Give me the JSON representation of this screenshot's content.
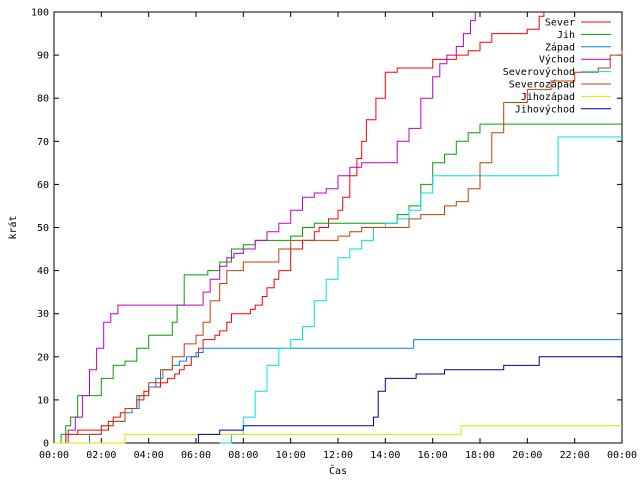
{
  "chart_data": {
    "type": "line",
    "title": "",
    "xlabel": "Čas",
    "ylabel": "krát",
    "xlim": [
      0,
      24
    ],
    "ylim": [
      0,
      100
    ],
    "x_tick_labels": [
      "00:00",
      "02:00",
      "04:00",
      "06:00",
      "08:00",
      "10:00",
      "12:00",
      "14:00",
      "16:00",
      "18:00",
      "20:00",
      "22:00",
      "00:00"
    ],
    "y_tick_labels": [
      "0",
      "10",
      "20",
      "30",
      "40",
      "50",
      "60",
      "70",
      "80",
      "90",
      "100"
    ],
    "grid": false,
    "legend_position": "top-right",
    "series": [
      {
        "name": "Sever",
        "color": "#ff0000",
        "x": [
          0.4,
          0.5,
          1.0,
          1.5,
          2.3,
          2.5,
          2.8,
          3.0,
          3.5,
          3.8,
          4.0,
          4.5,
          4.8,
          5.1,
          5.3,
          5.5,
          5.8,
          6.1,
          6.3,
          6.8,
          7.0,
          7.3,
          7.5,
          8.0,
          8.3,
          8.5,
          8.8,
          9.0,
          9.3,
          9.5,
          10.0,
          10.5,
          11.0,
          11.2,
          11.6,
          12.0,
          12.2,
          12.5,
          12.8,
          13.0,
          13.2,
          13.6,
          14.0,
          14.5,
          15.0,
          15.5,
          16.0,
          16.5,
          17.0,
          17.5,
          18.0,
          18.5,
          19.0,
          20.0,
          20.5,
          20.7
        ],
        "y": [
          0,
          2,
          3,
          3,
          5,
          6,
          7,
          8,
          10,
          12,
          13,
          14,
          15,
          16,
          17,
          18,
          20,
          22,
          24,
          25,
          26,
          28,
          30,
          30,
          31,
          32,
          34,
          36,
          38,
          40,
          45,
          47,
          49,
          50,
          52,
          54,
          57,
          62,
          66,
          70,
          75,
          80,
          86,
          87,
          87,
          87,
          89,
          89,
          90,
          91,
          93,
          95,
          95,
          96,
          99,
          100
        ]
      },
      {
        "name": "Jih",
        "color": "#00a000",
        "x": [
          0.1,
          0.3,
          0.5,
          0.7,
          1.0,
          1.5,
          2.0,
          2.5,
          3.0,
          3.5,
          4.0,
          4.5,
          5.0,
          5.2,
          5.5,
          6.0,
          6.5,
          7.0,
          7.5,
          8.0,
          8.5,
          9.0,
          9.5,
          10.0,
          10.5,
          11.0,
          12.0,
          13.0,
          14.0,
          14.5,
          15.0,
          15.5,
          16.0,
          16.5,
          17.0,
          17.5,
          18.0,
          18.5,
          19.0,
          20.0,
          22.0,
          24.0
        ],
        "y": [
          0,
          2,
          4,
          6,
          11,
          11,
          15,
          18,
          19,
          22,
          25,
          25,
          28,
          32,
          39,
          39,
          40,
          42,
          45,
          46,
          47,
          47,
          47,
          48,
          50,
          51,
          51,
          51,
          51,
          53,
          55,
          60,
          65,
          67,
          70,
          72,
          74,
          74,
          74,
          74,
          74,
          74
        ]
      },
      {
        "name": "Západ",
        "color": "#0080ff",
        "x": [
          1.0,
          1.5,
          2.0,
          2.5,
          3.0,
          3.3,
          3.6,
          4.0,
          4.3,
          4.6,
          5.0,
          5.3,
          5.6,
          6.0,
          6.3,
          6.6,
          7.0,
          7.5,
          8.0,
          9.0,
          10.0,
          11.0,
          12.0,
          13.0,
          14.0,
          15.0,
          15.2,
          16.0,
          17.0,
          18.0,
          19.0,
          20.0,
          22.0,
          24.0
        ],
        "y": [
          0,
          2,
          4,
          5,
          7,
          8,
          11,
          13,
          15,
          17,
          18,
          19,
          20,
          21,
          22,
          22,
          22,
          22,
          22,
          22,
          22,
          22,
          22,
          22,
          22,
          22,
          24,
          24,
          24,
          24,
          24,
          24,
          24,
          24
        ]
      },
      {
        "name": "Východ",
        "color": "#c000c0",
        "x": [
          0.3,
          0.6,
          0.9,
          1.2,
          1.5,
          1.8,
          2.1,
          2.4,
          2.7,
          3.0,
          4.0,
          5.0,
          6.0,
          6.3,
          6.6,
          7.0,
          7.3,
          7.6,
          8.0,
          8.5,
          9.0,
          9.5,
          10.0,
          10.5,
          11.0,
          11.5,
          12.0,
          12.5,
          13.0,
          13.5,
          14.0,
          14.5,
          15.0,
          15.5,
          16.0,
          16.3,
          16.6,
          17.0,
          17.3,
          17.6,
          17.8
        ],
        "y": [
          0,
          3,
          6,
          11,
          17,
          22,
          28,
          30,
          32,
          32,
          32,
          32,
          32,
          35,
          38,
          41,
          43,
          44,
          45,
          47,
          49,
          51,
          54,
          57,
          58,
          59,
          62,
          64,
          65,
          65,
          65,
          70,
          73,
          80,
          85,
          88,
          90,
          92,
          95,
          98,
          100
        ]
      },
      {
        "name": "Severovýchod",
        "color": "#00e0e0",
        "x": [
          7.0,
          7.5,
          8.0,
          8.5,
          9.0,
          9.5,
          10.0,
          10.5,
          11.0,
          11.5,
          12.0,
          12.5,
          13.0,
          13.5,
          14.0,
          14.5,
          15.0,
          15.5,
          16.0,
          16.5,
          17.0,
          17.5,
          18.0,
          19.0,
          20.0,
          21.0,
          21.3,
          22.0,
          24.0
        ],
        "y": [
          0,
          2,
          6,
          12,
          18,
          22,
          24,
          27,
          33,
          38,
          43,
          45,
          47,
          50,
          51,
          52,
          54,
          58,
          62,
          62,
          62,
          62,
          62,
          62,
          62,
          62,
          71,
          71,
          71
        ]
      },
      {
        "name": "Severozápad",
        "color": "#c04000",
        "x": [
          0.2,
          0.5,
          1.0,
          1.5,
          2.0,
          2.5,
          3.0,
          3.5,
          4.0,
          4.5,
          5.0,
          5.5,
          6.0,
          6.3,
          6.6,
          7.0,
          7.3,
          7.6,
          8.0,
          8.5,
          9.0,
          9.5,
          10.0,
          11.0,
          12.0,
          12.5,
          13.0,
          14.0,
          15.0,
          15.5,
          16.0,
          16.5,
          17.0,
          17.5,
          18.0,
          18.5,
          19.0,
          20.0,
          21.0,
          22.0,
          23.0,
          23.5,
          24.0
        ],
        "y": [
          0,
          2,
          2,
          2,
          4,
          5,
          8,
          11,
          14,
          17,
          20,
          23,
          25,
          28,
          33,
          37,
          40,
          40,
          42,
          42,
          42,
          45,
          47,
          47,
          48,
          49,
          50,
          50,
          52,
          53,
          53,
          55,
          56,
          59,
          65,
          72,
          79,
          82,
          84,
          86,
          87,
          90,
          91
        ]
      },
      {
        "name": "Jihozápad",
        "color": "#e0e000",
        "x": [
          0.0,
          2.5,
          3.0,
          4.0,
          6.0,
          8.0,
          10.0,
          12.0,
          14.0,
          16.0,
          17.0,
          17.2,
          18.0,
          20.0,
          22.0,
          24.0
        ],
        "y": [
          0,
          0,
          2,
          2,
          2,
          2,
          2,
          2,
          2,
          2,
          2,
          4,
          4,
          4,
          4,
          4
        ]
      },
      {
        "name": "Jihovýchod",
        "color": "#0000a0",
        "x": [
          6.0,
          6.1,
          6.5,
          7.0,
          8.0,
          9.0,
          10.0,
          11.0,
          12.0,
          13.0,
          13.5,
          13.7,
          14.0,
          15.0,
          15.3,
          16.0,
          16.5,
          17.0,
          17.5,
          18.0,
          19.0,
          20.0,
          20.5,
          21.0,
          22.0,
          23.0,
          24.0
        ],
        "y": [
          0,
          2,
          2,
          3,
          4,
          4,
          4,
          4,
          4,
          4,
          6,
          12,
          15,
          15,
          16,
          16,
          17,
          17,
          17,
          17,
          18,
          18,
          20,
          20,
          20,
          20,
          20
        ]
      }
    ]
  }
}
